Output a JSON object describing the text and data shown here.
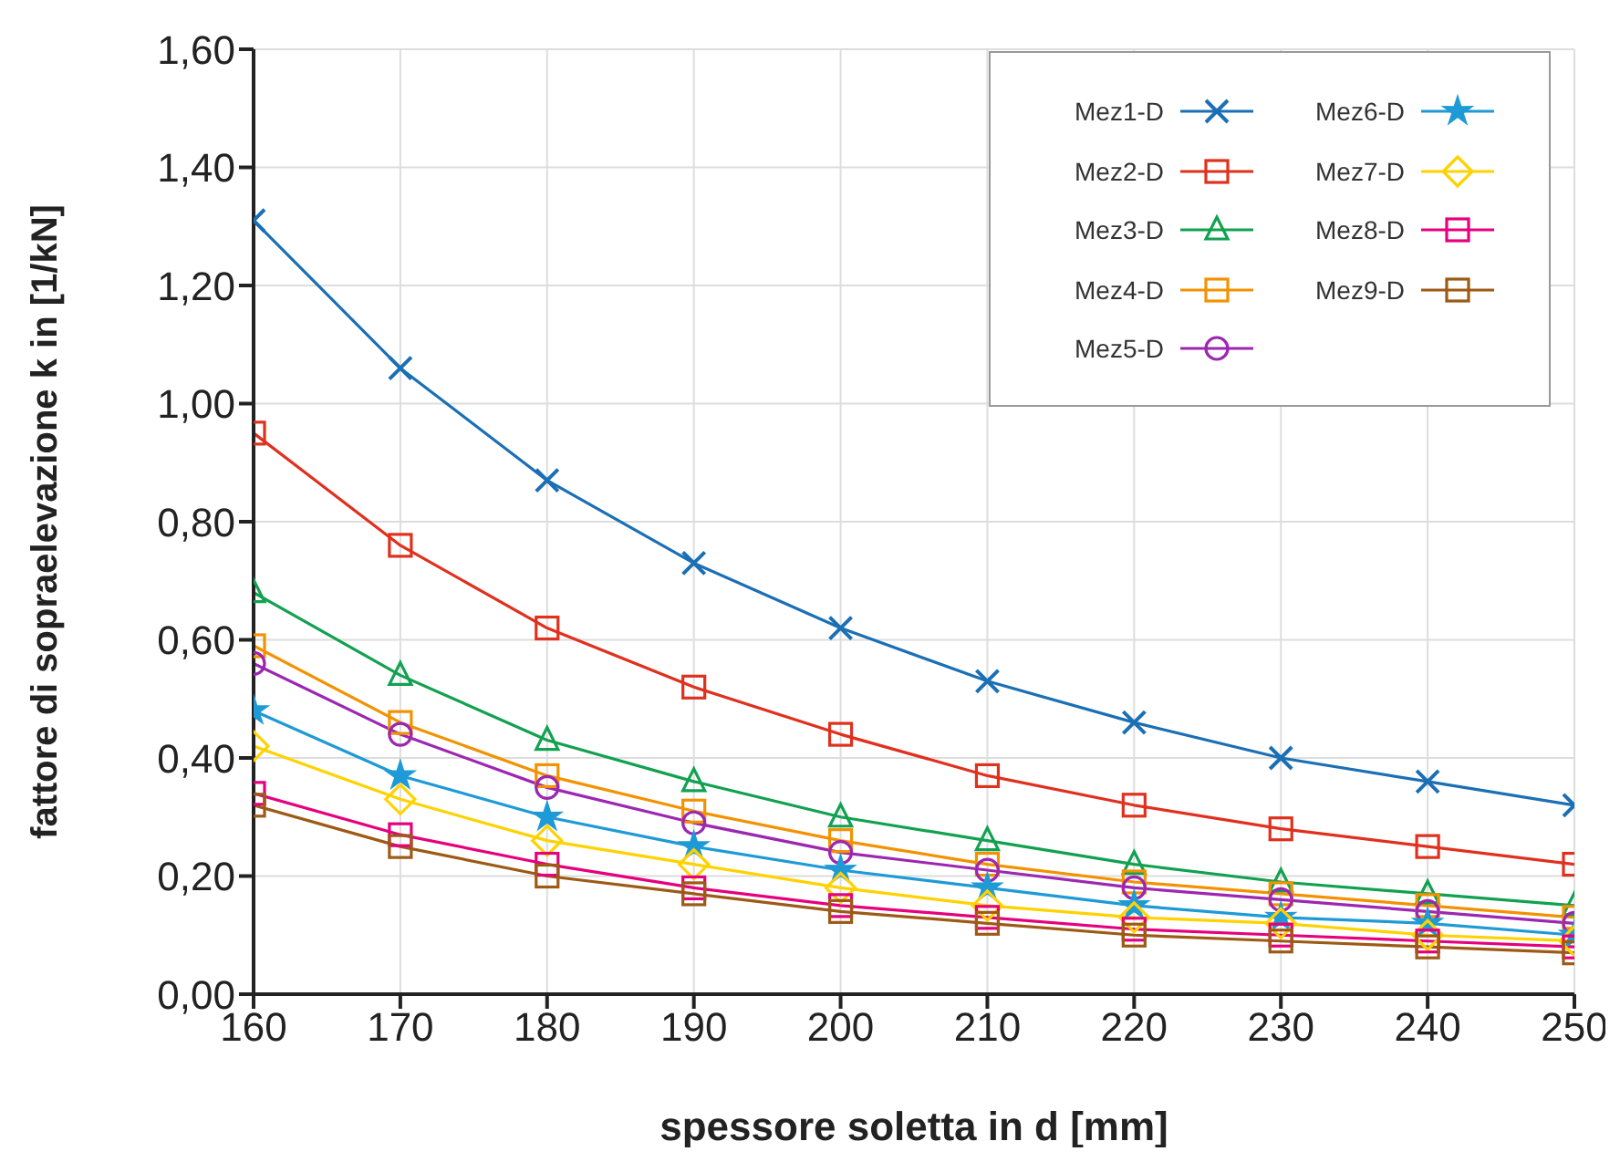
{
  "chart_data": {
    "type": "line",
    "xlabel": "spessore soletta in d [mm]",
    "ylabel": "fattore di sopraelevazione k in [1/kN]",
    "x": [
      160,
      170,
      180,
      190,
      200,
      210,
      220,
      230,
      240,
      250
    ],
    "xlim": [
      160,
      250
    ],
    "xticks": [
      160,
      170,
      180,
      190,
      200,
      210,
      220,
      230,
      240,
      250
    ],
    "ylim": [
      0,
      1.6
    ],
    "yticks": [
      {
        "value": 0,
        "label": "0,00"
      },
      {
        "value": 0.2,
        "label": "0,20"
      },
      {
        "value": 0.4,
        "label": "0,40"
      },
      {
        "value": 0.6,
        "label": "0,60"
      },
      {
        "value": 0.8,
        "label": "0,80"
      },
      {
        "value": 1,
        "label": "1,00"
      },
      {
        "value": 1.2,
        "label": "1,20"
      },
      {
        "value": 1.4,
        "label": "1,40"
      },
      {
        "value": 1.6,
        "label": "1,60"
      }
    ],
    "grid": true,
    "legend": "top right",
    "line_style": "solid",
    "series": [
      {
        "name": "Mez1-D",
        "color": "#1a6fb5",
        "marker": "cross",
        "values": [
          1.31,
          1.06,
          0.87,
          0.73,
          0.62,
          0.53,
          0.46,
          0.4,
          0.36,
          0.32
        ]
      },
      {
        "name": "Mez2-D",
        "color": "#e0301e",
        "marker": "square",
        "values": [
          0.95,
          0.76,
          0.62,
          0.52,
          0.44,
          0.37,
          0.32,
          0.28,
          0.25,
          0.22
        ]
      },
      {
        "name": "Mez3-D",
        "color": "#12a150",
        "marker": "triangle",
        "values": [
          0.68,
          0.54,
          0.43,
          0.36,
          0.3,
          0.26,
          0.22,
          0.19,
          0.17,
          0.15
        ]
      },
      {
        "name": "Mez4-D",
        "color": "#f39200",
        "marker": "square",
        "values": [
          0.59,
          0.46,
          0.37,
          0.31,
          0.26,
          0.22,
          0.19,
          0.17,
          0.15,
          0.13
        ]
      },
      {
        "name": "Mez5-D",
        "color": "#9c27b0",
        "marker": "circle",
        "values": [
          0.56,
          0.44,
          0.35,
          0.29,
          0.24,
          0.21,
          0.18,
          0.16,
          0.14,
          0.12
        ]
      },
      {
        "name": "Mez6-D",
        "color": "#1e9ad6",
        "marker": "star",
        "values": [
          0.48,
          0.37,
          0.3,
          0.25,
          0.21,
          0.18,
          0.15,
          0.13,
          0.12,
          0.1
        ]
      },
      {
        "name": "Mez7-D",
        "color": "#ffd200",
        "marker": "diamond",
        "values": [
          0.42,
          0.33,
          0.26,
          0.22,
          0.18,
          0.15,
          0.13,
          0.12,
          0.1,
          0.09
        ]
      },
      {
        "name": "Mez8-D",
        "color": "#e5007e",
        "marker": "square",
        "values": [
          0.34,
          0.27,
          0.22,
          0.18,
          0.15,
          0.13,
          0.11,
          0.1,
          0.09,
          0.08
        ]
      },
      {
        "name": "Mez9-D",
        "color": "#9c5a15",
        "marker": "square",
        "values": [
          0.32,
          0.25,
          0.2,
          0.17,
          0.14,
          0.12,
          0.1,
          0.09,
          0.08,
          0.07
        ]
      }
    ]
  }
}
